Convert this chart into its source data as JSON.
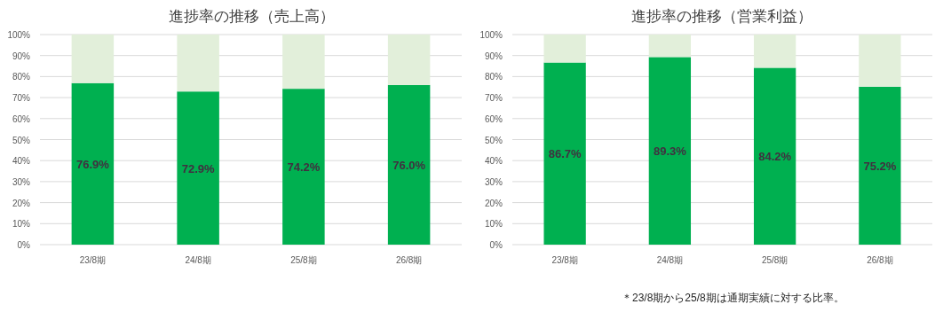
{
  "chart_data": [
    {
      "type": "bar",
      "title": "進捗率の推移（売上高）",
      "stacked": true,
      "grid": "y",
      "categories": [
        "23/8期",
        "24/8期",
        "25/8期",
        "26/8期"
      ],
      "ylim": [
        0,
        100
      ],
      "yticks": [
        {
          "value": 0,
          "label": "0%"
        },
        {
          "value": 10,
          "label": "10%"
        },
        {
          "value": 20,
          "label": "20%"
        },
        {
          "value": 30,
          "label": "30%"
        },
        {
          "value": 40,
          "label": "40%"
        },
        {
          "value": 50,
          "label": "50%"
        },
        {
          "value": 60,
          "label": "60%"
        },
        {
          "value": 70,
          "label": "70%"
        },
        {
          "value": 80,
          "label": "80%"
        },
        {
          "value": 90,
          "label": "90%"
        },
        {
          "value": 100,
          "label": "100%"
        }
      ],
      "series": [
        {
          "color": "#00b050",
          "values": [
            76.9,
            72.9,
            74.2,
            76.0
          ],
          "value_labels": [
            "76.9%",
            "72.9%",
            "74.2%",
            "76.0%"
          ]
        },
        {
          "color": "#e2efda",
          "values": [
            23.1,
            27.1,
            25.8,
            24.0
          ]
        }
      ]
    },
    {
      "type": "bar",
      "title": "進捗率の推移（営業利益）",
      "stacked": true,
      "grid": "y",
      "categories": [
        "23/8期",
        "24/8期",
        "25/8期",
        "26/8期"
      ],
      "ylim": [
        0,
        100
      ],
      "yticks": [
        {
          "value": 0,
          "label": "0%"
        },
        {
          "value": 10,
          "label": "10%"
        },
        {
          "value": 20,
          "label": "20%"
        },
        {
          "value": 30,
          "label": "30%"
        },
        {
          "value": 40,
          "label": "40%"
        },
        {
          "value": 50,
          "label": "50%"
        },
        {
          "value": 60,
          "label": "60%"
        },
        {
          "value": 70,
          "label": "70%"
        },
        {
          "value": 80,
          "label": "80%"
        },
        {
          "value": 90,
          "label": "90%"
        },
        {
          "value": 100,
          "label": "100%"
        }
      ],
      "series": [
        {
          "color": "#00b050",
          "values": [
            86.7,
            89.3,
            84.2,
            75.2
          ],
          "value_labels": [
            "86.7%",
            "89.3%",
            "84.2%",
            "75.2%"
          ]
        },
        {
          "color": "#e2efda",
          "values": [
            13.3,
            10.7,
            15.8,
            24.8
          ]
        }
      ],
      "annotations": [
        "＊23/8期から25/8期は通期実績に対する比率。"
      ]
    }
  ]
}
